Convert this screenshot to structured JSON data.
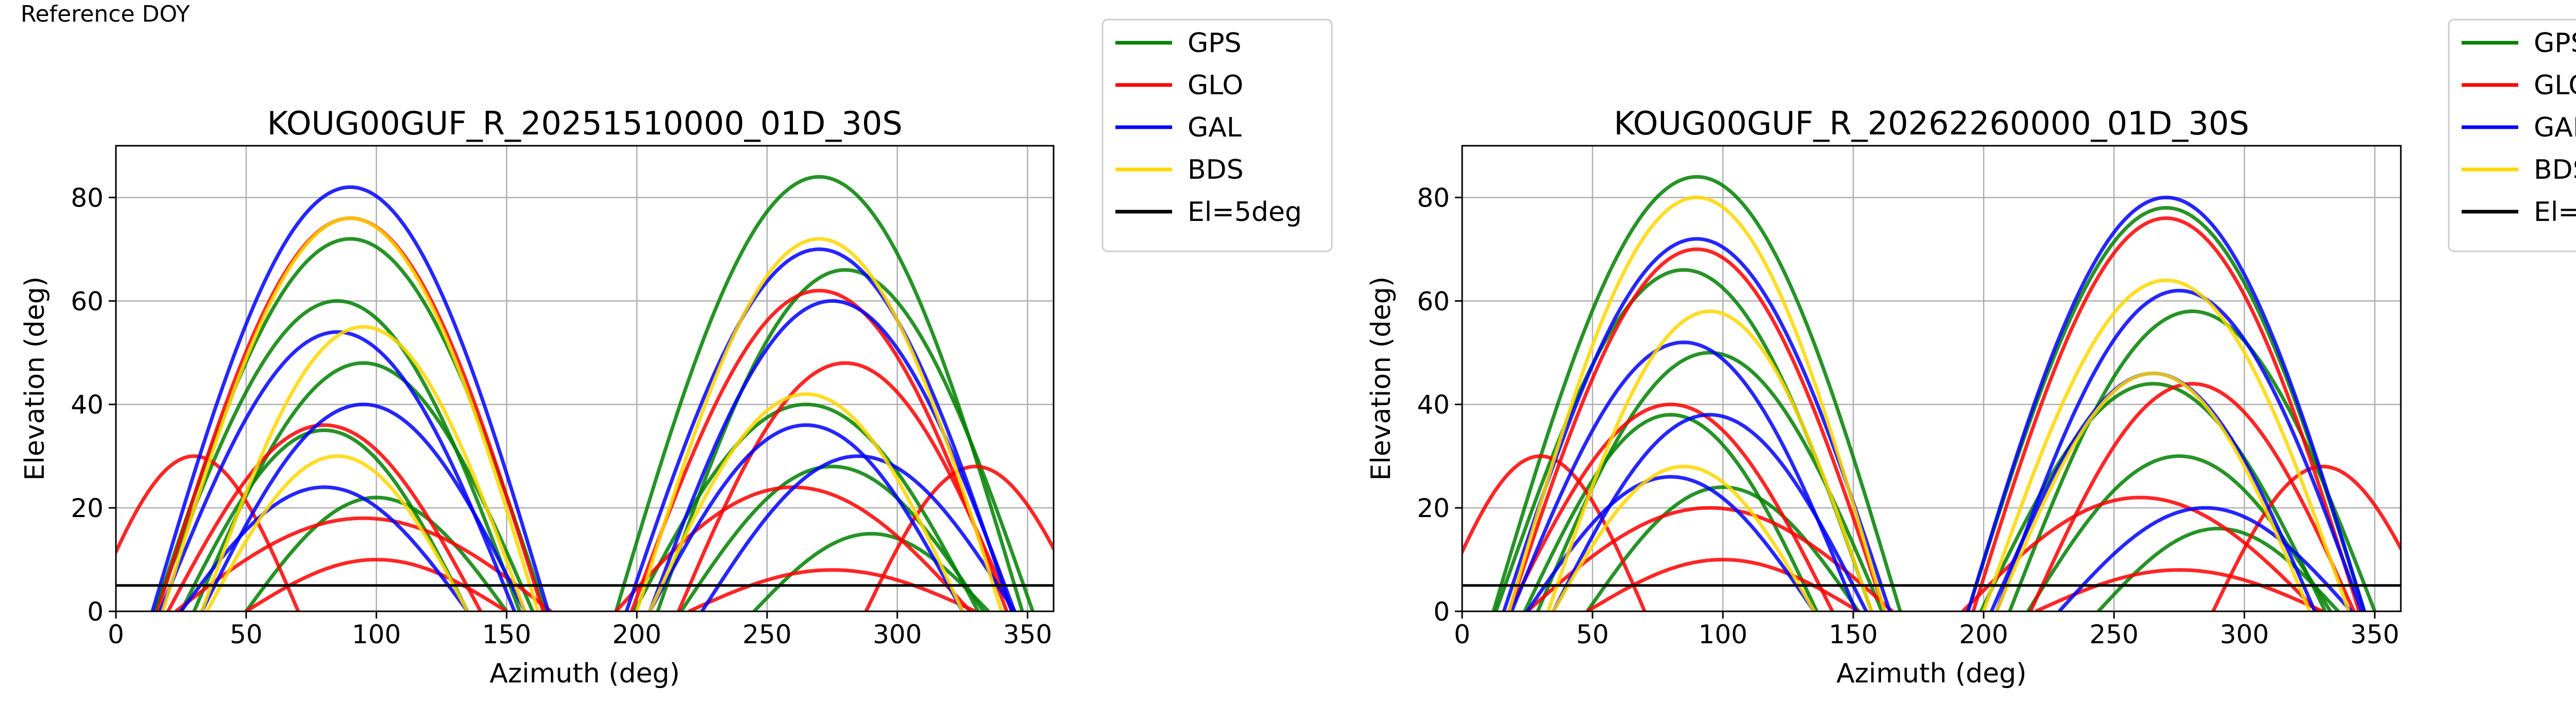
{
  "figure_label": "Reference DOY",
  "legend_entries": [
    {
      "label": "GPS",
      "color": "#008000"
    },
    {
      "label": "GLO",
      "color": "#ff0000"
    },
    {
      "label": "GAL",
      "color": "#0000ff"
    },
    {
      "label": "BDS",
      "color": "#ffd700"
    },
    {
      "label": "El=5deg",
      "color": "#000000"
    }
  ],
  "chart_data": [
    {
      "type": "line",
      "title": "KOUG00GUF_R_20251510000_01D_30S",
      "xlabel": "Azimuth (deg)",
      "ylabel": "Elevation (deg)",
      "xlim": [
        0,
        360
      ],
      "ylim": [
        0,
        90
      ],
      "xticks": [
        0,
        50,
        100,
        150,
        200,
        250,
        300,
        350
      ],
      "yticks": [
        0,
        20,
        40,
        60,
        80
      ],
      "grid": true,
      "legend_position": "outside-right",
      "reference_line": {
        "name": "El=5deg",
        "y": 5,
        "color": "#000000"
      },
      "series": [
        {
          "name": "GPS",
          "color": "#008000",
          "tracks": [
            {
              "az_center": 90,
              "max_el": 72,
              "half_width": 75
            },
            {
              "az_center": 270,
              "max_el": 84,
              "half_width": 78
            },
            {
              "az_center": 85,
              "max_el": 60,
              "half_width": 70
            },
            {
              "az_center": 280,
              "max_el": 66,
              "half_width": 72
            },
            {
              "az_center": 95,
              "max_el": 48,
              "half_width": 65
            },
            {
              "az_center": 265,
              "max_el": 40,
              "half_width": 66
            },
            {
              "az_center": 80,
              "max_el": 35,
              "half_width": 55
            },
            {
              "az_center": 275,
              "max_el": 28,
              "half_width": 58
            },
            {
              "az_center": 100,
              "max_el": 22,
              "half_width": 50
            },
            {
              "az_center": 290,
              "max_el": 15,
              "half_width": 45
            }
          ]
        },
        {
          "name": "GLO",
          "color": "#ff0000",
          "tracks": [
            {
              "az_center": 90,
              "max_el": 76,
              "half_width": 74
            },
            {
              "az_center": 270,
              "max_el": 62,
              "half_width": 72
            },
            {
              "az_center": 80,
              "max_el": 36,
              "half_width": 60
            },
            {
              "az_center": 280,
              "max_el": 48,
              "half_width": 64
            },
            {
              "az_center": 95,
              "max_el": 18,
              "half_width": 72
            },
            {
              "az_center": 260,
              "max_el": 24,
              "half_width": 68
            },
            {
              "az_center": 30,
              "max_el": 30,
              "half_width": 40
            },
            {
              "az_center": 330,
              "max_el": 28,
              "half_width": 42
            },
            {
              "az_center": 100,
              "max_el": 10,
              "half_width": 50
            },
            {
              "az_center": 275,
              "max_el": 8,
              "half_width": 55
            }
          ]
        },
        {
          "name": "GAL",
          "color": "#0000ff",
          "tracks": [
            {
              "az_center": 90,
              "max_el": 82,
              "half_width": 76
            },
            {
              "az_center": 270,
              "max_el": 70,
              "half_width": 74
            },
            {
              "az_center": 85,
              "max_el": 54,
              "half_width": 68
            },
            {
              "az_center": 275,
              "max_el": 60,
              "half_width": 70
            },
            {
              "az_center": 95,
              "max_el": 40,
              "half_width": 62
            },
            {
              "az_center": 265,
              "max_el": 36,
              "half_width": 60
            },
            {
              "az_center": 80,
              "max_el": 24,
              "half_width": 55
            },
            {
              "az_center": 285,
              "max_el": 30,
              "half_width": 60
            }
          ]
        },
        {
          "name": "BDS",
          "color": "#ffd700",
          "tracks": [
            {
              "az_center": 90,
              "max_el": 76,
              "half_width": 72
            },
            {
              "az_center": 270,
              "max_el": 72,
              "half_width": 70
            },
            {
              "az_center": 95,
              "max_el": 55,
              "half_width": 62
            },
            {
              "az_center": 265,
              "max_el": 42,
              "half_width": 60
            },
            {
              "az_center": 85,
              "max_el": 30,
              "half_width": 50
            }
          ]
        }
      ]
    },
    {
      "type": "line",
      "title": "KOUG00GUF_R_20262260000_01D_30S",
      "xlabel": "Azimuth (deg)",
      "ylabel": "Elevation (deg)",
      "xlim": [
        0,
        360
      ],
      "ylim": [
        0,
        90
      ],
      "xticks": [
        0,
        50,
        100,
        150,
        200,
        250,
        300,
        350
      ],
      "yticks": [
        0,
        20,
        40,
        60,
        80
      ],
      "grid": true,
      "legend_position": "outside-right",
      "reference_line": {
        "name": "El=5deg",
        "y": 5,
        "color": "#000000"
      },
      "series": [
        {
          "name": "GPS",
          "color": "#008000",
          "tracks": [
            {
              "az_center": 90,
              "max_el": 84,
              "half_width": 78
            },
            {
              "az_center": 270,
              "max_el": 78,
              "half_width": 76
            },
            {
              "az_center": 85,
              "max_el": 66,
              "half_width": 72
            },
            {
              "az_center": 280,
              "max_el": 58,
              "half_width": 70
            },
            {
              "az_center": 95,
              "max_el": 50,
              "half_width": 66
            },
            {
              "az_center": 265,
              "max_el": 44,
              "half_width": 66
            },
            {
              "az_center": 80,
              "max_el": 38,
              "half_width": 56
            },
            {
              "az_center": 275,
              "max_el": 30,
              "half_width": 58
            },
            {
              "az_center": 100,
              "max_el": 24,
              "half_width": 52
            },
            {
              "az_center": 290,
              "max_el": 16,
              "half_width": 46
            }
          ]
        },
        {
          "name": "GLO",
          "color": "#ff0000",
          "tracks": [
            {
              "az_center": 90,
              "max_el": 70,
              "half_width": 72
            },
            {
              "az_center": 270,
              "max_el": 76,
              "half_width": 74
            },
            {
              "az_center": 80,
              "max_el": 40,
              "half_width": 62
            },
            {
              "az_center": 280,
              "max_el": 44,
              "half_width": 62
            },
            {
              "az_center": 95,
              "max_el": 20,
              "half_width": 70
            },
            {
              "az_center": 260,
              "max_el": 22,
              "half_width": 68
            },
            {
              "az_center": 30,
              "max_el": 30,
              "half_width": 40
            },
            {
              "az_center": 330,
              "max_el": 28,
              "half_width": 42
            },
            {
              "az_center": 100,
              "max_el": 10,
              "half_width": 52
            },
            {
              "az_center": 275,
              "max_el": 8,
              "half_width": 55
            }
          ]
        },
        {
          "name": "GAL",
          "color": "#0000ff",
          "tracks": [
            {
              "az_center": 90,
              "max_el": 72,
              "half_width": 74
            },
            {
              "az_center": 270,
              "max_el": 80,
              "half_width": 76
            },
            {
              "az_center": 85,
              "max_el": 52,
              "half_width": 66
            },
            {
              "az_center": 275,
              "max_el": 62,
              "half_width": 70
            },
            {
              "az_center": 95,
              "max_el": 38,
              "half_width": 60
            },
            {
              "az_center": 265,
              "max_el": 46,
              "half_width": 62
            },
            {
              "az_center": 80,
              "max_el": 26,
              "half_width": 55
            },
            {
              "az_center": 285,
              "max_el": 20,
              "half_width": 56
            }
          ]
        },
        {
          "name": "BDS",
          "color": "#ffd700",
          "tracks": [
            {
              "az_center": 90,
              "max_el": 80,
              "half_width": 72
            },
            {
              "az_center": 270,
              "max_el": 64,
              "half_width": 70
            },
            {
              "az_center": 95,
              "max_el": 58,
              "half_width": 62
            },
            {
              "az_center": 265,
              "max_el": 46,
              "half_width": 60
            },
            {
              "az_center": 85,
              "max_el": 28,
              "half_width": 50
            }
          ]
        }
      ]
    }
  ]
}
